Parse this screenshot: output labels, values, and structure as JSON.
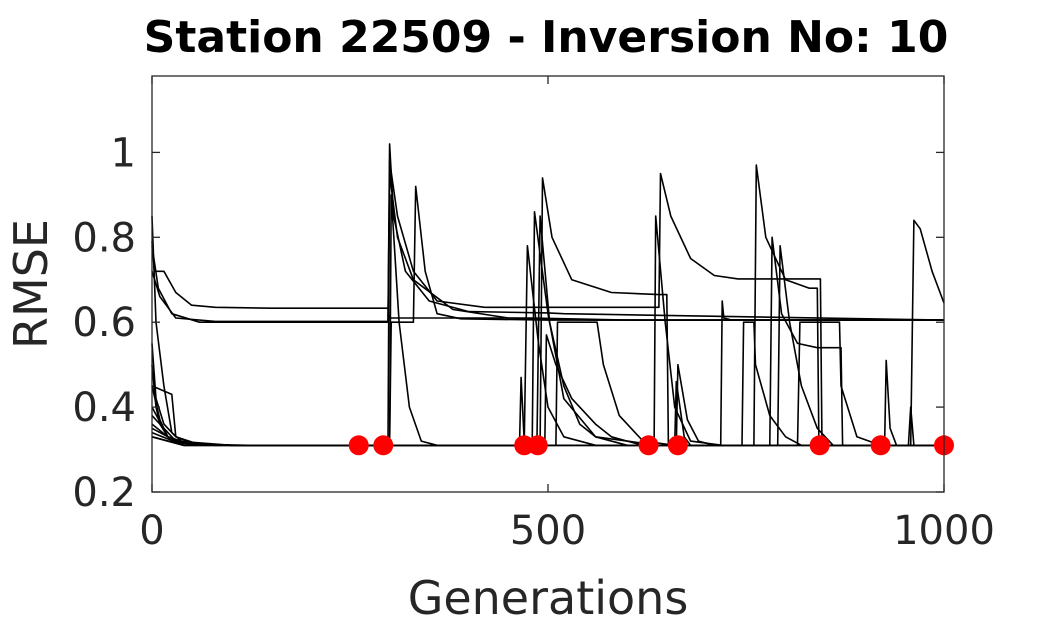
{
  "chart_data": {
    "type": "line",
    "title": "Station 22509 - Inversion No: 10",
    "xlabel": "Generations",
    "ylabel": "RMSE",
    "xlim": [
      0,
      1000
    ],
    "ylim": [
      0.2,
      1.18
    ],
    "xticks": [
      0,
      500,
      1000
    ],
    "xtick_labels": [
      "0",
      "500",
      "1000"
    ],
    "yticks": [
      0.2,
      0.4,
      0.6,
      0.8,
      1.0
    ],
    "ytick_labels": [
      "0.2",
      "0.4",
      "0.6",
      "0.8",
      "1"
    ],
    "grid": false,
    "legend": "none",
    "colors": {
      "lines": "#000000",
      "markers": "#ff0000",
      "axes": "#262626"
    },
    "series": [
      {
        "values": [
          [
            0,
            0.79
          ],
          [
            3,
            0.72
          ],
          [
            15,
            0.72
          ],
          [
            30,
            0.67
          ],
          [
            50,
            0.64
          ],
          [
            80,
            0.635
          ],
          [
            150,
            0.633
          ],
          [
            298,
            0.633
          ],
          [
            300,
            0.61
          ],
          [
            380,
            0.61
          ],
          [
            480,
            0.61
          ],
          [
            600,
            0.605
          ],
          [
            1000,
            0.605
          ]
        ]
      },
      {
        "values": [
          [
            0,
            0.72
          ],
          [
            10,
            0.66
          ],
          [
            30,
            0.61
          ],
          [
            80,
            0.602
          ],
          [
            298,
            0.602
          ],
          [
            300,
            1.02
          ],
          [
            305,
            0.85
          ],
          [
            320,
            0.72
          ],
          [
            350,
            0.65
          ],
          [
            400,
            0.625
          ],
          [
            500,
            0.622
          ],
          [
            520,
            0.62
          ],
          [
            1000,
            0.605
          ]
        ]
      },
      {
        "values": [
          [
            0,
            0.78
          ],
          [
            8,
            0.68
          ],
          [
            25,
            0.62
          ],
          [
            60,
            0.6
          ],
          [
            298,
            0.6
          ],
          [
            300,
            0.95
          ],
          [
            310,
            0.8
          ],
          [
            330,
            0.7
          ],
          [
            380,
            0.63
          ],
          [
            450,
            0.61
          ],
          [
            560,
            0.605
          ],
          [
            1000,
            0.605
          ]
        ]
      },
      {
        "values": [
          [
            0,
            0.85
          ],
          [
            5,
            0.6
          ],
          [
            15,
            0.45
          ],
          [
            25,
            0.34
          ],
          [
            40,
            0.315
          ],
          [
            80,
            0.31
          ],
          [
            298,
            0.31
          ],
          [
            300,
            0.98
          ],
          [
            310,
            0.85
          ],
          [
            330,
            0.72
          ],
          [
            360,
            0.65
          ],
          [
            420,
            0.635
          ],
          [
            640,
            0.635
          ],
          [
            642,
            0.95
          ],
          [
            655,
            0.85
          ],
          [
            680,
            0.75
          ],
          [
            710,
            0.71
          ],
          [
            740,
            0.702
          ],
          [
            844,
            0.702
          ],
          [
            846,
            0.31
          ],
          [
            1000,
            0.31
          ]
        ]
      },
      {
        "values": [
          [
            0,
            0.55
          ],
          [
            5,
            0.42
          ],
          [
            15,
            0.36
          ],
          [
            30,
            0.33
          ],
          [
            50,
            0.315
          ],
          [
            100,
            0.31
          ],
          [
            300,
            0.31
          ],
          [
            302,
            0.9
          ],
          [
            312,
            0.6
          ],
          [
            325,
            0.4
          ],
          [
            340,
            0.32
          ],
          [
            360,
            0.31
          ],
          [
            490,
            0.31
          ],
          [
            493,
            0.94
          ],
          [
            505,
            0.8
          ],
          [
            530,
            0.7
          ],
          [
            580,
            0.67
          ],
          [
            640,
            0.665
          ],
          [
            650,
            0.665
          ],
          [
            652,
            0.31
          ],
          [
            1000,
            0.31
          ]
        ]
      },
      {
        "values": [
          [
            0,
            0.5
          ],
          [
            5,
            0.4
          ],
          [
            10,
            0.36
          ],
          [
            20,
            0.33
          ],
          [
            40,
            0.315
          ],
          [
            100,
            0.31
          ],
          [
            300,
            0.31
          ],
          [
            302,
            0.6
          ],
          [
            330,
            0.6
          ],
          [
            333,
            0.92
          ],
          [
            345,
            0.72
          ],
          [
            360,
            0.62
          ],
          [
            390,
            0.608
          ],
          [
            500,
            0.605
          ],
          [
            1000,
            0.605
          ]
        ]
      },
      {
        "values": [
          [
            0,
            0.45
          ],
          [
            10,
            0.37
          ],
          [
            20,
            0.33
          ],
          [
            40,
            0.315
          ],
          [
            100,
            0.31
          ],
          [
            480,
            0.31
          ],
          [
            483,
            0.86
          ],
          [
            500,
            0.62
          ],
          [
            520,
            0.42
          ],
          [
            560,
            0.33
          ],
          [
            600,
            0.31
          ],
          [
            634,
            0.31
          ],
          [
            636,
            0.85
          ],
          [
            648,
            0.6
          ],
          [
            660,
            0.4
          ],
          [
            680,
            0.32
          ],
          [
            720,
            0.31
          ],
          [
            1000,
            0.31
          ]
        ]
      },
      {
        "values": [
          [
            0,
            0.45
          ],
          [
            25,
            0.43
          ],
          [
            30,
            0.33
          ],
          [
            60,
            0.312
          ],
          [
            120,
            0.31
          ],
          [
            470,
            0.31
          ],
          [
            474,
            0.78
          ],
          [
            488,
            0.55
          ],
          [
            500,
            0.4
          ],
          [
            520,
            0.33
          ],
          [
            560,
            0.31
          ],
          [
            760,
            0.31
          ],
          [
            763,
            0.97
          ],
          [
            775,
            0.8
          ],
          [
            800,
            0.7
          ],
          [
            830,
            0.68
          ],
          [
            840,
            0.68
          ],
          [
            842,
            0.31
          ],
          [
            1000,
            0.31
          ]
        ]
      },
      {
        "values": [
          [
            0,
            0.4
          ],
          [
            20,
            0.33
          ],
          [
            50,
            0.312
          ],
          [
            120,
            0.31
          ],
          [
            486,
            0.31
          ],
          [
            490,
            0.85
          ],
          [
            502,
            0.6
          ],
          [
            520,
            0.45
          ],
          [
            540,
            0.36
          ],
          [
            560,
            0.33
          ],
          [
            600,
            0.32
          ],
          [
            620,
            0.31
          ],
          [
            790,
            0.31
          ],
          [
            793,
            0.78
          ],
          [
            805,
            0.6
          ],
          [
            820,
            0.45
          ],
          [
            840,
            0.35
          ],
          [
            860,
            0.31
          ],
          [
            1000,
            0.31
          ]
        ]
      },
      {
        "values": [
          [
            0,
            0.38
          ],
          [
            30,
            0.32
          ],
          [
            100,
            0.31
          ],
          [
            510,
            0.31
          ],
          [
            512,
            0.6
          ],
          [
            560,
            0.6
          ],
          [
            562,
            0.6
          ],
          [
            570,
            0.5
          ],
          [
            590,
            0.38
          ],
          [
            620,
            0.32
          ],
          [
            660,
            0.31
          ],
          [
            815,
            0.31
          ],
          [
            818,
            0.6
          ],
          [
            868,
            0.6
          ],
          [
            870,
            0.45
          ],
          [
            890,
            0.33
          ],
          [
            920,
            0.31
          ],
          [
            1000,
            0.31
          ]
        ]
      },
      {
        "values": [
          [
            0,
            0.36
          ],
          [
            30,
            0.315
          ],
          [
            100,
            0.31
          ],
          [
            496,
            0.31
          ],
          [
            498,
            0.57
          ],
          [
            510,
            0.5
          ],
          [
            530,
            0.42
          ],
          [
            560,
            0.36
          ],
          [
            580,
            0.33
          ],
          [
            600,
            0.32
          ],
          [
            640,
            0.31
          ],
          [
            745,
            0.31
          ],
          [
            747,
            0.6
          ],
          [
            760,
            0.6
          ],
          [
            762,
            0.5
          ],
          [
            780,
            0.38
          ],
          [
            800,
            0.33
          ],
          [
            820,
            0.31
          ],
          [
            1000,
            0.31
          ]
        ]
      },
      {
        "values": [
          [
            0,
            0.35
          ],
          [
            40,
            0.31
          ],
          [
            464,
            0.31
          ],
          [
            466,
            0.47
          ],
          [
            470,
            0.32
          ],
          [
            476,
            0.31
          ],
          [
            660,
            0.31
          ],
          [
            662,
            0.46
          ],
          [
            672,
            0.33
          ],
          [
            680,
            0.31
          ],
          [
            718,
            0.31
          ],
          [
            720,
            0.65
          ],
          [
            722,
            0.61
          ],
          [
            730,
            0.606
          ],
          [
            760,
            0.605
          ],
          [
            1000,
            0.605
          ]
        ]
      },
      {
        "values": [
          [
            0,
            0.34
          ],
          [
            40,
            0.31
          ],
          [
            662,
            0.31
          ],
          [
            664,
            0.5
          ],
          [
            676,
            0.37
          ],
          [
            690,
            0.32
          ],
          [
            710,
            0.31
          ],
          [
            780,
            0.31
          ],
          [
            783,
            0.8
          ],
          [
            795,
            0.62
          ],
          [
            815,
            0.55
          ],
          [
            840,
            0.54
          ],
          [
            870,
            0.54
          ],
          [
            872,
            0.31
          ],
          [
            925,
            0.31
          ],
          [
            927,
            0.51
          ],
          [
            932,
            0.35
          ],
          [
            940,
            0.31
          ],
          [
            1000,
            0.31
          ]
        ]
      },
      {
        "values": [
          [
            0,
            0.33
          ],
          [
            40,
            0.31
          ],
          [
            958,
            0.31
          ],
          [
            960,
            0.58
          ],
          [
            962,
            0.84
          ],
          [
            970,
            0.82
          ],
          [
            985,
            0.72
          ],
          [
            1000,
            0.645
          ]
        ]
      },
      {
        "values": [
          [
            0,
            0.33
          ],
          [
            40,
            0.31
          ],
          [
            955,
            0.31
          ],
          [
            958,
            0.4
          ],
          [
            962,
            0.31
          ],
          [
            1000,
            0.31
          ]
        ]
      }
    ],
    "markers": {
      "x": [
        261,
        292,
        470,
        487,
        627,
        664,
        843,
        920,
        1000
      ],
      "y": [
        0.31,
        0.31,
        0.31,
        0.31,
        0.31,
        0.31,
        0.31,
        0.31,
        0.31
      ]
    }
  }
}
